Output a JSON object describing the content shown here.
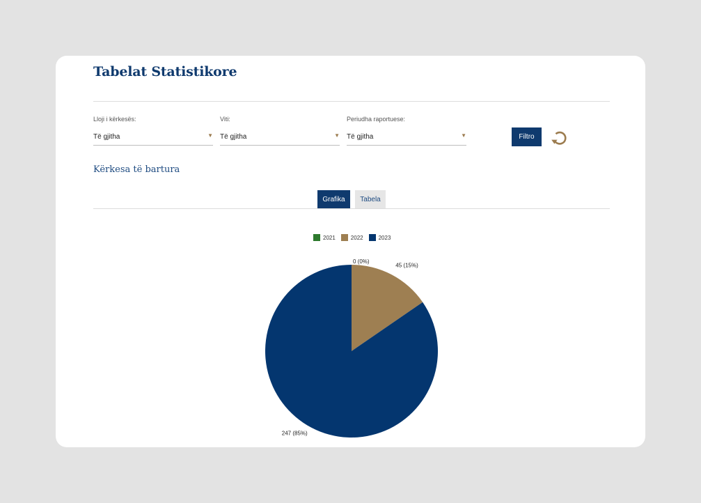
{
  "header": {
    "title": "Tabelat Statistikore"
  },
  "filters": {
    "request_type": {
      "label": "Lloji i kërkesës:",
      "value": "Të gjitha"
    },
    "year": {
      "label": "Viti:",
      "value": "Të gjitha"
    },
    "reporting_period": {
      "label": "Periudha raportuese:",
      "value": "Të gjitha"
    },
    "filter_button": "Filtro",
    "reset_icon": "refresh-icon"
  },
  "section": {
    "title": "Kërkesa të bartura"
  },
  "tabs": [
    {
      "label": "Grafika",
      "active": true
    },
    {
      "label": "Tabela",
      "active": false
    }
  ],
  "colors": {
    "primary": "#0f3a6e",
    "accent": "#9c7c4f"
  },
  "chart_data": {
    "type": "pie",
    "categories": [
      "2021",
      "2022",
      "2023"
    ],
    "values": [
      0,
      45,
      247
    ],
    "colors": [
      "#2e7a2e",
      "#9e7f52",
      "#04366f"
    ],
    "data_labels": [
      "0 (0%)",
      "45 (15%)",
      "247 (85%)"
    ],
    "legend_position": "top"
  }
}
